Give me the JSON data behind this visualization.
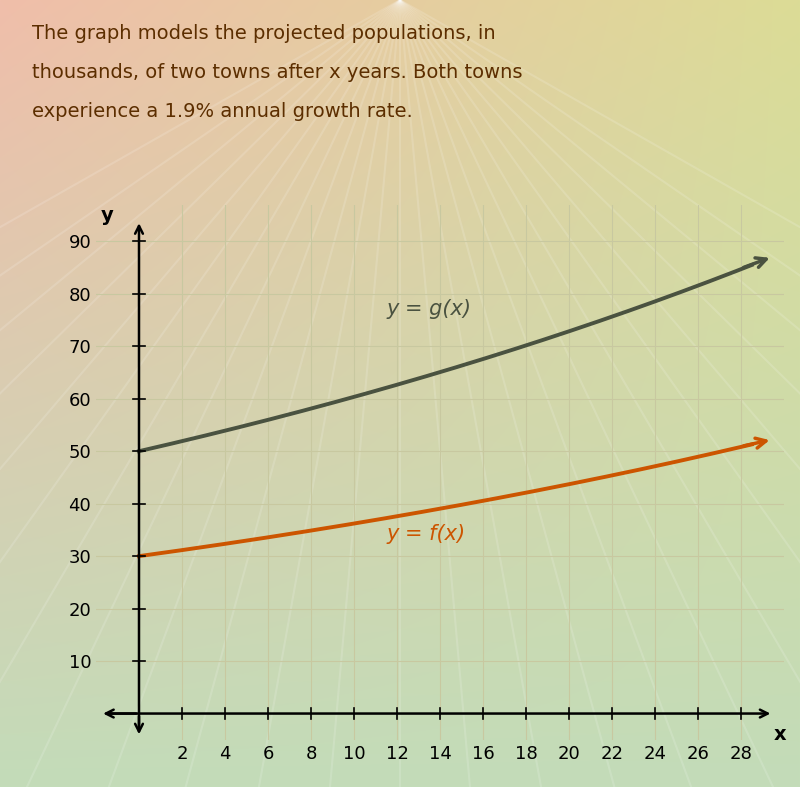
{
  "title_line1": "The graph models the projected populations, in",
  "title_line2": "thousands, of two towns after x years. Both towns",
  "title_line3": "experience a 1.9% annual growth rate.",
  "g_initial": 50,
  "f_initial": 30,
  "growth_rate": 0.019,
  "x_min": -2,
  "x_max": 30,
  "y_min": -5,
  "y_max": 97,
  "x_ticks": [
    2,
    4,
    6,
    8,
    10,
    12,
    14,
    16,
    18,
    20,
    22,
    24,
    26,
    28
  ],
  "y_ticks": [
    10,
    20,
    30,
    40,
    50,
    60,
    70,
    80,
    90
  ],
  "g_color": "#4a5240",
  "f_color": "#cc5500",
  "g_label": "y = g(x)",
  "f_label": "y = f(x)",
  "label_fontsize": 15,
  "tick_fontsize": 13,
  "text_color": "#5c2e00",
  "title_fontsize": 14,
  "line_width": 2.8,
  "grid_color": "#c8c8a0",
  "grid_lw": 0.8
}
